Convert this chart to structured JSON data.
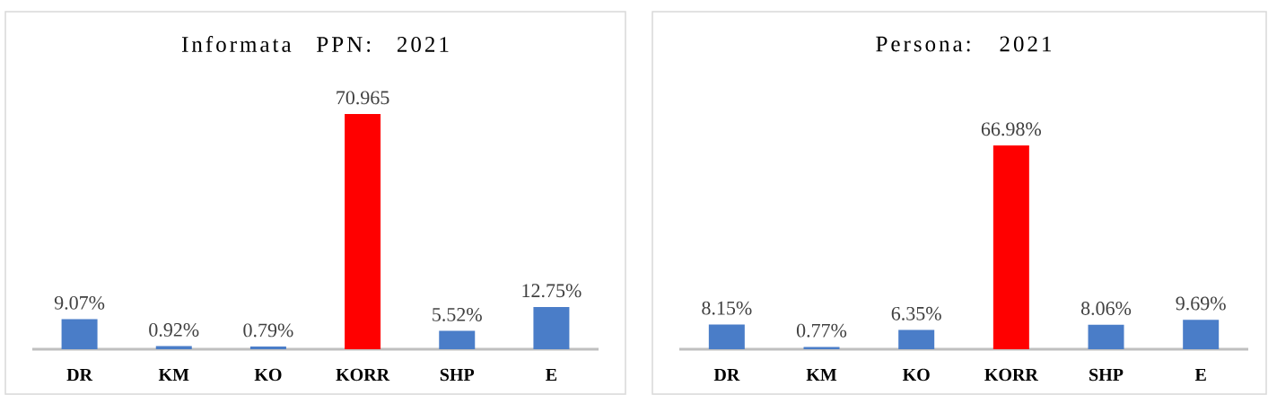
{
  "chart_data": [
    {
      "type": "bar",
      "title": "Informata PPN: 2021",
      "categories": [
        "DR",
        "KM",
        "KO",
        "KORR",
        "SHP",
        "E"
      ],
      "values": [
        9.07,
        0.92,
        0.79,
        70.965,
        5.52,
        12.75
      ],
      "colors": [
        "#4a7dc8",
        "#4a7dc8",
        "#4a7dc8",
        "#ff0000",
        "#4a7dc8",
        "#4a7dc8"
      ],
      "value_labels": [
        "9.07%",
        "0.92%",
        "0.79%",
        "70.965",
        "5.52%",
        "12.75%"
      ]
    },
    {
      "type": "bar",
      "title": "Persona: 2021",
      "categories": [
        "DR",
        "KM",
        "KO",
        "KORR",
        "SHP",
        "E"
      ],
      "values": [
        8.15,
        0.77,
        6.35,
        66.98,
        8.06,
        9.69
      ],
      "colors": [
        "#4a7dc8",
        "#4a7dc8",
        "#4a7dc8",
        "#ff0000",
        "#4a7dc8",
        "#4a7dc8"
      ],
      "value_labels": [
        "8.15%",
        "0.77%",
        "6.35%",
        "66.98%",
        "8.06%",
        "9.69%"
      ]
    }
  ]
}
